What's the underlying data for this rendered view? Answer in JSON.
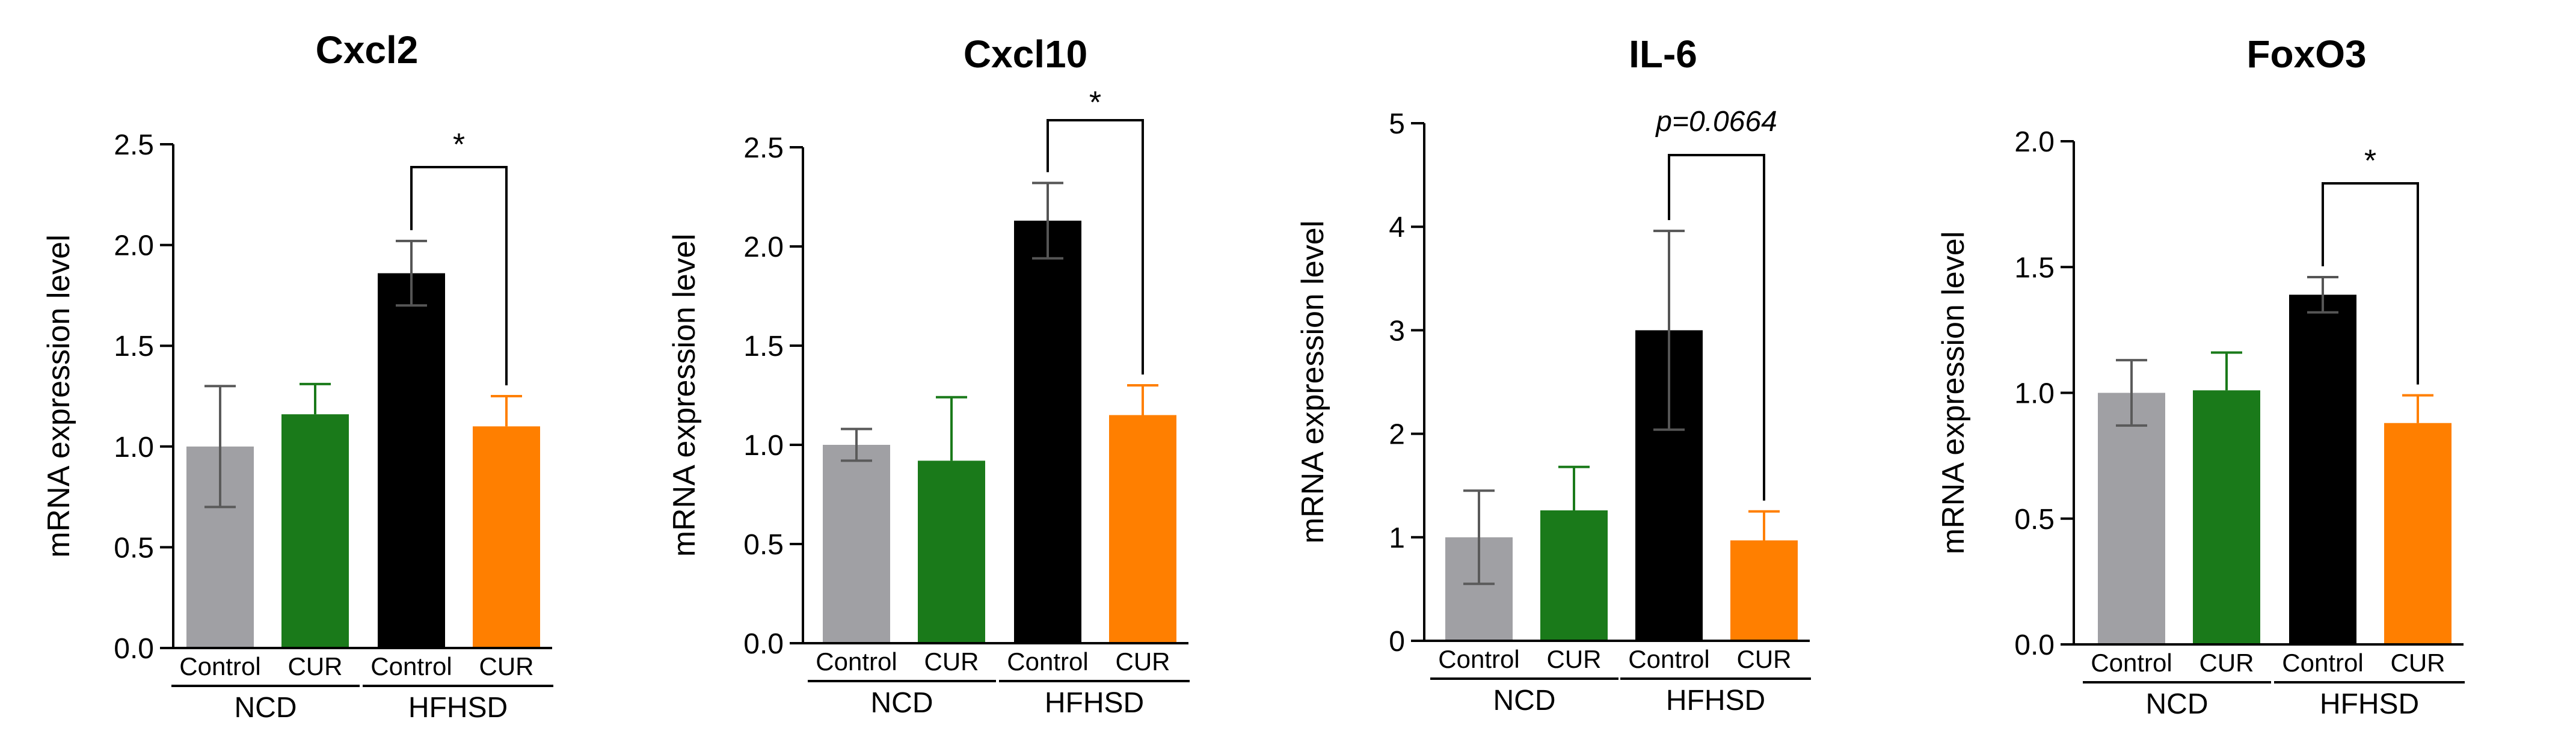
{
  "chart_data": [
    {
      "type": "bar",
      "title": "Cxcl2",
      "ylabel": "mRNA expression level",
      "ylim": [
        0,
        2.5
      ],
      "yticks": [
        "0.0",
        "0.5",
        "1.0",
        "1.5",
        "2.0",
        "2.5"
      ],
      "categories": [
        "Control",
        "CUR",
        "Control",
        "CUR"
      ],
      "groups": [
        "NCD",
        "HFHSD"
      ],
      "values": [
        1.0,
        1.16,
        1.86,
        1.1
      ],
      "errors": [
        0.3,
        0.15,
        0.16,
        0.15
      ],
      "significance": {
        "from": 2,
        "to": 3,
        "label": "*"
      }
    },
    {
      "type": "bar",
      "title": "Cxcl10",
      "ylabel": "mRNA expression level",
      "ylim": [
        0,
        2.5
      ],
      "yticks": [
        "0.0",
        "0.5",
        "1.0",
        "1.5",
        "2.0",
        "2.5"
      ],
      "categories": [
        "Control",
        "CUR",
        "Control",
        "CUR"
      ],
      "groups": [
        "NCD",
        "HFHSD"
      ],
      "values": [
        1.0,
        0.92,
        2.13,
        1.15
      ],
      "errors": [
        0.08,
        0.32,
        0.19,
        0.15
      ],
      "significance": {
        "from": 2,
        "to": 3,
        "label": "*"
      }
    },
    {
      "type": "bar",
      "title": "IL-6",
      "ylabel": "mRNA expression level",
      "ylim": [
        0,
        5
      ],
      "yticks": [
        "0",
        "1",
        "2",
        "3",
        "4",
        "5"
      ],
      "categories": [
        "Control",
        "CUR",
        "Control",
        "CUR"
      ],
      "groups": [
        "NCD",
        "HFHSD"
      ],
      "values": [
        1.0,
        1.26,
        3.0,
        0.97
      ],
      "errors": [
        0.45,
        0.42,
        0.96,
        0.28
      ],
      "significance": {
        "from": 2,
        "to": 3,
        "label": "p=0.0664"
      }
    },
    {
      "type": "bar",
      "title": "FoxO3",
      "ylabel": "mRNA expression level",
      "ylim": [
        0,
        2.0
      ],
      "yticks": [
        "0.0",
        "0.5",
        "1.0",
        "1.5",
        "2.0"
      ],
      "categories": [
        "Control",
        "CUR",
        "Control",
        "CUR"
      ],
      "groups": [
        "NCD",
        "HFHSD"
      ],
      "values": [
        1.0,
        1.01,
        1.39,
        0.88
      ],
      "errors": [
        0.13,
        0.15,
        0.07,
        0.11
      ],
      "significance": {
        "from": 2,
        "to": 3,
        "label": "*"
      }
    }
  ],
  "colors": {
    "bars": [
      "#a0a0a4",
      "#1a7a1a",
      "#000000",
      "#ff7f00"
    ],
    "error_bars": [
      "#5a5a5a",
      "#1a7a1a",
      "#555555",
      "#ff7f00"
    ],
    "axis": "#000000"
  }
}
